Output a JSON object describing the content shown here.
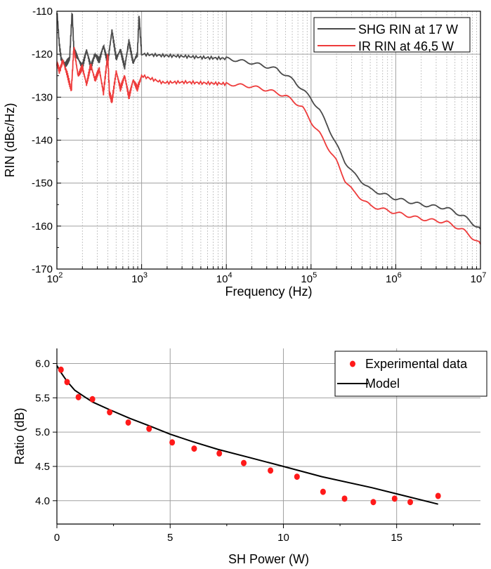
{
  "chart_data": [
    {
      "type": "line",
      "xscale": "log10",
      "xlabel": "Frequency (Hz)",
      "ylabel": "RIN (dBc/Hz)",
      "xlim_log10": [
        2,
        7
      ],
      "ylim": [
        -170,
        -110
      ],
      "x_tick_base": "10",
      "x_tick_exponents": [
        "2",
        "3",
        "4",
        "5",
        "6",
        "7"
      ],
      "y_ticks": [
        "-110",
        "-120",
        "-130",
        "-140",
        "-150",
        "-160",
        "-170"
      ],
      "grid": true,
      "legend_position": "top-right",
      "series": [
        {
          "name": "SHG RIN at 17 W",
          "color": "#4a4a4a",
          "log10_x": [
            2.0,
            2.03,
            2.05,
            2.1,
            2.15,
            2.18,
            2.2,
            2.25,
            2.3,
            2.35,
            2.4,
            2.45,
            2.5,
            2.55,
            2.6,
            2.65,
            2.7,
            2.75,
            2.8,
            2.85,
            2.9,
            2.95,
            2.97,
            3.0,
            3.25,
            3.5,
            3.75,
            4.0,
            4.3,
            4.6,
            4.8,
            5.0,
            5.1,
            5.2,
            5.3,
            5.4,
            5.5,
            5.7,
            6.0,
            6.3,
            6.6,
            6.8,
            7.0
          ],
          "y": [
            -110,
            -118,
            -121,
            -122.5,
            -121,
            -110,
            -119,
            -121,
            -123,
            -119,
            -123,
            -120,
            -121.5,
            -118,
            -122,
            -114.5,
            -121,
            -119,
            -123,
            -117,
            -122,
            -120,
            -111,
            -120,
            -120.3,
            -120.5,
            -120.8,
            -121,
            -122,
            -123.5,
            -126.2,
            -130.3,
            -133,
            -136.8,
            -141.1,
            -145,
            -147.7,
            -151.5,
            -153.6,
            -155,
            -155.8,
            -157.7,
            -160.7
          ]
        },
        {
          "name": "IR RIN at 46,5 W",
          "color": "#ee3b3b",
          "log10_x": [
            2.0,
            2.03,
            2.07,
            2.12,
            2.17,
            2.2,
            2.25,
            2.3,
            2.35,
            2.4,
            2.45,
            2.5,
            2.55,
            2.6,
            2.62,
            2.65,
            2.7,
            2.75,
            2.8,
            2.85,
            2.9,
            2.95,
            3.0,
            3.25,
            3.5,
            3.75,
            4.0,
            4.3,
            4.5,
            4.7,
            4.9,
            5.0,
            5.1,
            5.2,
            5.3,
            5.4,
            5.5,
            5.7,
            6.0,
            6.3,
            6.6,
            6.8,
            7.0
          ],
          "y": [
            -122,
            -124,
            -121.5,
            -124.5,
            -128.5,
            -118.5,
            -125,
            -123,
            -127,
            -122.5,
            -126,
            -123.5,
            -129,
            -120,
            -129,
            -131,
            -124,
            -128,
            -125,
            -130,
            -126,
            -128,
            -125,
            -126.6,
            -126.5,
            -126.7,
            -126.9,
            -127.5,
            -128.4,
            -129.7,
            -132.4,
            -135.7,
            -138.4,
            -141.7,
            -144.9,
            -149.3,
            -152,
            -155.3,
            -156.9,
            -158.3,
            -159.1,
            -161,
            -164.2
          ]
        }
      ]
    },
    {
      "type": "scatter",
      "xlabel": "SH Power (W)",
      "ylabel": "Ratio (dB)",
      "xlim": [
        0,
        18.7
      ],
      "ylim": [
        3.66,
        6.22
      ],
      "x_ticks": [
        "0",
        "5",
        "10",
        "15"
      ],
      "y_ticks": [
        "4.0",
        "4.5",
        "5.0",
        "5.5",
        "6.0"
      ],
      "grid": true,
      "legend_position": "top-right",
      "series": [
        {
          "name": "Experimental data",
          "kind": "scatter",
          "color": "#ff1a1a",
          "x": [
            0.18,
            0.45,
            0.95,
            1.57,
            2.33,
            3.15,
            4.07,
            5.09,
            6.06,
            7.17,
            8.25,
            9.43,
            10.6,
            11.75,
            12.7,
            13.97,
            14.91,
            15.6,
            16.83
          ],
          "y": [
            5.91,
            5.73,
            5.51,
            5.48,
            5.29,
            5.14,
            5.05,
            4.85,
            4.76,
            4.69,
            4.55,
            4.44,
            4.35,
            4.13,
            4.03,
            3.98,
            4.03,
            3.98,
            4.07
          ]
        },
        {
          "name": "Model",
          "kind": "line",
          "color": "#000000",
          "x": [
            0,
            0.2,
            0.45,
            0.79,
            1.2,
            1.57,
            2.3,
            3.22,
            4.1,
            5,
            6,
            7.1,
            8.5,
            10,
            11.7,
            13.9,
            15,
            16.83
          ],
          "y": [
            5.97,
            5.86,
            5.74,
            5.61,
            5.52,
            5.44,
            5.33,
            5.2,
            5.09,
            4.97,
            4.86,
            4.75,
            4.63,
            4.5,
            4.35,
            4.19,
            4.1,
            3.95
          ]
        }
      ]
    }
  ]
}
